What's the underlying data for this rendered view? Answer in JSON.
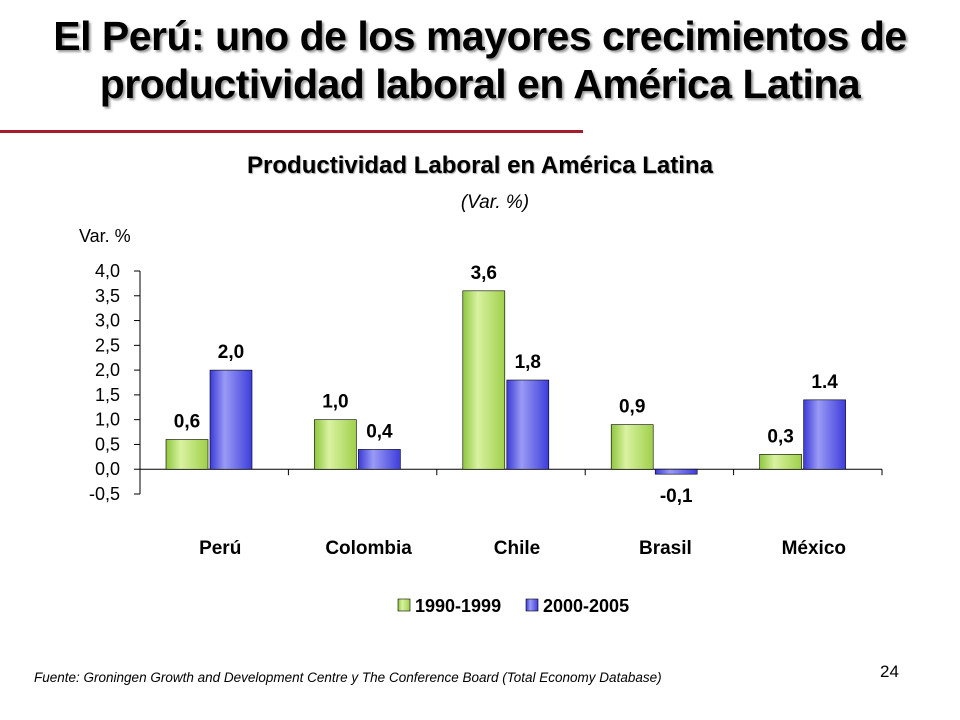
{
  "slide": {
    "title": "El Perú: uno de los mayores crecimientos de productividad laboral en América Latina",
    "source": "Fuente: Groningen Growth and Development Centre y The Conference Board (Total Economy Database)",
    "page_number": "24"
  },
  "colors": {
    "accent_rule": "#a51c2e",
    "series_1": "#b5e061",
    "series_2": "#4f4fe6"
  },
  "chart_data": {
    "type": "bar",
    "title": "Productividad Laboral en América Latina",
    "subtitle": "(Var. %)",
    "ylabel": "Var. %",
    "xlabel": "",
    "categories": [
      "Perú",
      "Colombia",
      "Chile",
      "Brasil",
      "México"
    ],
    "series": [
      {
        "name": "1990-1999",
        "values": [
          0.6,
          1.0,
          3.6,
          0.9,
          0.3
        ],
        "labels": [
          "0,6",
          "1,0",
          "3,6",
          "0,9",
          "0,3"
        ]
      },
      {
        "name": "2000-2005",
        "values": [
          2.0,
          0.4,
          1.8,
          -0.1,
          1.4
        ],
        "labels": [
          "2,0",
          "0,4",
          "1,8",
          "-0,1",
          "1.4"
        ]
      }
    ],
    "ylim": [
      -0.5,
      4.0
    ],
    "yticks": [
      -0.5,
      0.0,
      0.5,
      1.0,
      1.5,
      2.0,
      2.5,
      3.0,
      3.5,
      4.0
    ],
    "ytick_labels": [
      "-0,5",
      "0,0",
      "0,5",
      "1,0",
      "1,5",
      "2,0",
      "2,5",
      "3,0",
      "3,5",
      "4,0"
    ],
    "grid": false,
    "legend_position": "bottom"
  }
}
